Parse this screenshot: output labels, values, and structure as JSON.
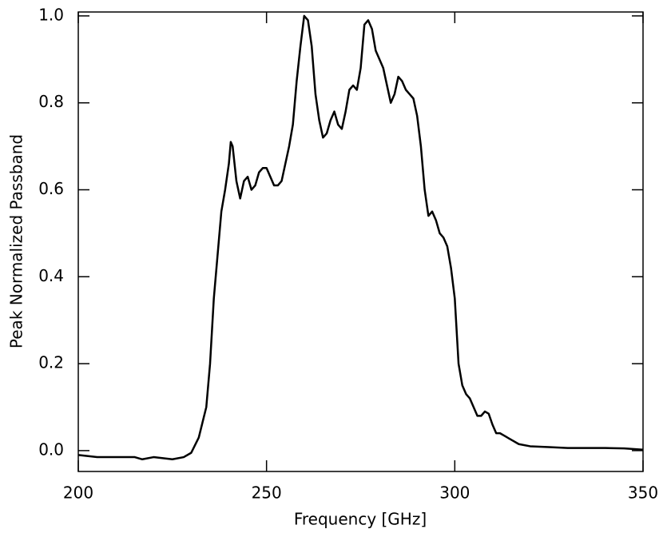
{
  "chart_data": {
    "type": "line",
    "xlabel": "Frequency [GHz]",
    "ylabel": "Peak Normalized Passband",
    "color": "#000000",
    "x": [
      200,
      205,
      210,
      215,
      217,
      220,
      225,
      228,
      230,
      232,
      234,
      235,
      236,
      237,
      238,
      239,
      240,
      240.5,
      241,
      242,
      243,
      244,
      245,
      246,
      247,
      248,
      249,
      250,
      251,
      252,
      253,
      254,
      255,
      256,
      257,
      258,
      259,
      260,
      261,
      262,
      263,
      264,
      265,
      266,
      267,
      268,
      269,
      270,
      271,
      272,
      273,
      274,
      275,
      276,
      277,
      278,
      279,
      280,
      281,
      282,
      283,
      284,
      285,
      286,
      287,
      288,
      289,
      290,
      291,
      292,
      293,
      294,
      295,
      296,
      297,
      298,
      299,
      300,
      301,
      302,
      303,
      304,
      305,
      306,
      307,
      308,
      309,
      310,
      311,
      312,
      313,
      315,
      317,
      320,
      325,
      330,
      340,
      345,
      350
    ],
    "values": [
      -0.01,
      -0.015,
      -0.015,
      -0.015,
      -0.02,
      -0.015,
      -0.02,
      -0.015,
      -0.005,
      0.03,
      0.1,
      0.2,
      0.35,
      0.45,
      0.55,
      0.6,
      0.66,
      0.71,
      0.7,
      0.62,
      0.58,
      0.62,
      0.63,
      0.6,
      0.61,
      0.64,
      0.65,
      0.65,
      0.63,
      0.61,
      0.61,
      0.62,
      0.66,
      0.7,
      0.75,
      0.85,
      0.93,
      1.0,
      0.99,
      0.93,
      0.82,
      0.76,
      0.72,
      0.73,
      0.76,
      0.78,
      0.75,
      0.74,
      0.78,
      0.83,
      0.84,
      0.83,
      0.88,
      0.98,
      0.99,
      0.97,
      0.92,
      0.9,
      0.88,
      0.84,
      0.8,
      0.82,
      0.86,
      0.85,
      0.83,
      0.82,
      0.81,
      0.77,
      0.7,
      0.6,
      0.54,
      0.55,
      0.53,
      0.5,
      0.49,
      0.47,
      0.42,
      0.35,
      0.2,
      0.15,
      0.13,
      0.12,
      0.1,
      0.08,
      0.08,
      0.09,
      0.085,
      0.06,
      0.04,
      0.04,
      0.035,
      0.025,
      0.015,
      0.01,
      0.008,
      0.006,
      0.006,
      0.005,
      0.002
    ],
    "xlim": [
      200,
      350
    ],
    "xticks": [
      200,
      250,
      300,
      350
    ],
    "ylim": [
      -0.048,
      1.009
    ],
    "yticks": [
      {
        "value": 0,
        "label": "0.0"
      },
      {
        "value": 0.2,
        "label": "0.2"
      },
      {
        "value": 0.4,
        "label": "0.4"
      },
      {
        "value": 0.6,
        "label": "0.6"
      },
      {
        "value": 0.8,
        "label": "0.8"
      },
      {
        "value": 1.0,
        "label": "1.0"
      }
    ]
  }
}
